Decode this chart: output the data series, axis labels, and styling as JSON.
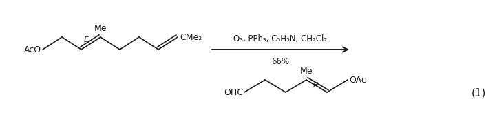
{
  "figure_width": 7.22,
  "figure_height": 2.03,
  "dpi": 100,
  "background_color": "#ffffff",
  "reaction_number": "(1)",
  "arrow_reagents_line1": "O₃, PPh₃, C₅H₅N, CH₂Cl₂",
  "arrow_reagents_line2": "66%",
  "reactant_label_AcO": "AcO",
  "reactant_label_E": "E",
  "reactant_label_Me": "Me",
  "reactant_label_CMe2": "CMe₂",
  "product_label_OHC": "OHC",
  "product_label_OAc": "OAc",
  "product_label_E": "E",
  "product_label_Me": "Me",
  "text_color": "#1a1a1a",
  "line_color": "#1a1a1a",
  "font_size_labels": 9,
  "font_size_reagents": 8.5,
  "font_size_number": 11
}
